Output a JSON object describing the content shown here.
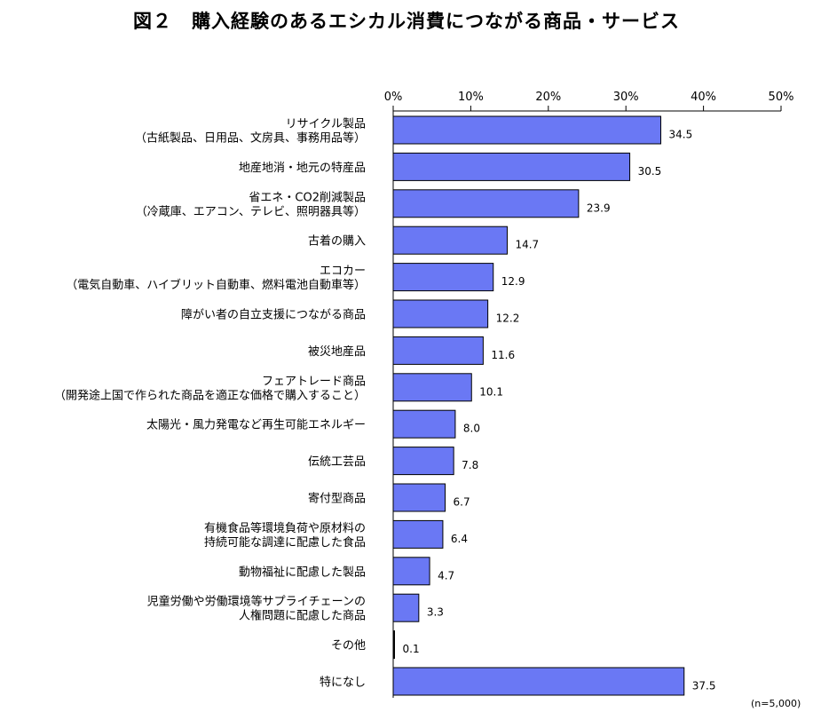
{
  "title": "図２　購入経験のあるエシカル消費につながる商品・サービス",
  "note": "(n=5,000)",
  "colors": {
    "bar": "#6a78f4",
    "bar_border": "#000000"
  },
  "chart_data": {
    "type": "bar",
    "orientation": "horizontal",
    "title": "図２　購入経験のあるエシカル消費につながる商品・サービス",
    "xlim": [
      0,
      50
    ],
    "x_ticks": [
      "0%",
      "10%",
      "20%",
      "30%",
      "40%",
      "50%"
    ],
    "x_tick_values": [
      0,
      10,
      20,
      30,
      40,
      50
    ],
    "xaxis_position": "top",
    "grid": false,
    "categories": [
      [
        "リサイクル製品",
        "（古紙製品、日用品、文房具、事務用品等）"
      ],
      [
        "地産地消・地元の特産品"
      ],
      [
        "省エネ・CO2削減製品",
        "（冷蔵庫、エアコン、テレビ、照明器具等）"
      ],
      [
        "古着の購入"
      ],
      [
        "エコカー",
        "（電気自動車、ハイブリット自動車、燃料電池自動車等）"
      ],
      [
        "障がい者の自立支援につながる商品"
      ],
      [
        "被災地産品"
      ],
      [
        "フェアトレード商品",
        "（開発途上国で作られた商品を適正な価格で購入すること）"
      ],
      [
        "太陽光・風力発電など再生可能エネルギー"
      ],
      [
        "伝統工芸品"
      ],
      [
        "寄付型商品"
      ],
      [
        "有機食品等環境負荷や原材料の",
        "持続可能な調達に配慮した食品"
      ],
      [
        "動物福祉に配慮した製品"
      ],
      [
        "児童労働や労働環境等サプライチェーンの",
        "人権問題に配慮した商品"
      ],
      [
        "その他"
      ],
      [
        "特になし"
      ]
    ],
    "values": [
      34.5,
      30.5,
      23.9,
      14.7,
      12.9,
      12.2,
      11.6,
      10.1,
      8.0,
      7.8,
      6.7,
      6.4,
      4.7,
      3.3,
      0.1,
      37.5
    ],
    "value_labels": [
      "34.5",
      "30.5",
      "23.9",
      "14.7",
      "12.9",
      "12.2",
      "11.6",
      "10.1",
      "8.0",
      "7.8",
      "6.7",
      "6.4",
      "4.7",
      "3.3",
      "0.1",
      "37.5"
    ]
  }
}
